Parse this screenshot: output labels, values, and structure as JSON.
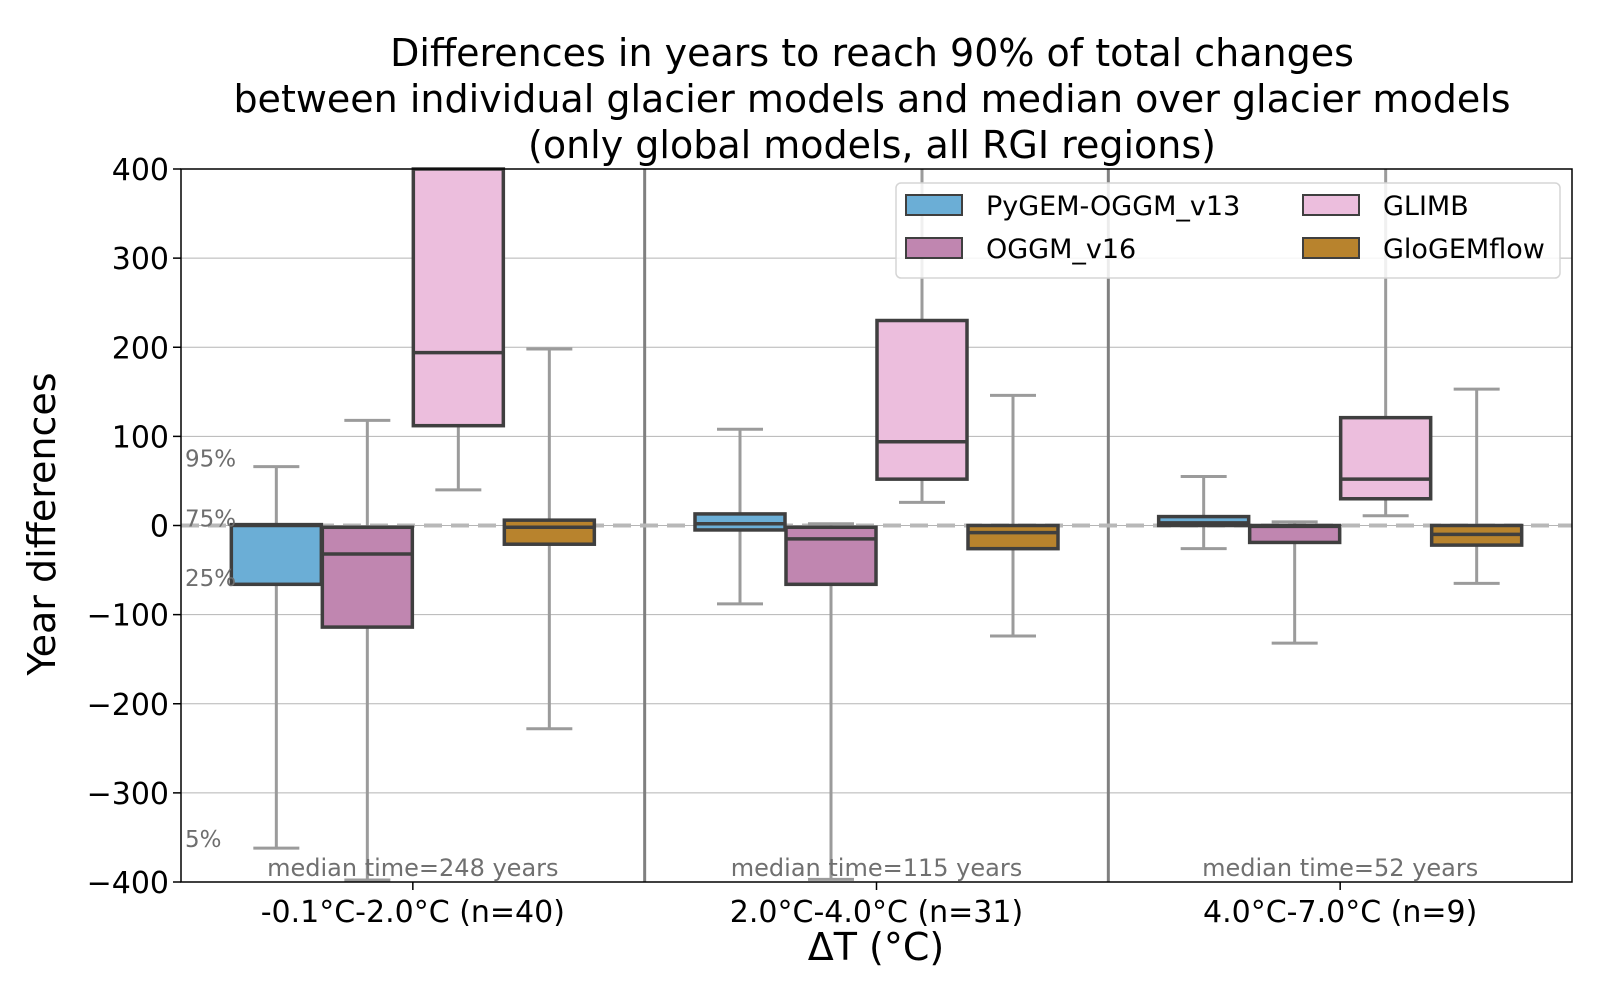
{
  "chart_data": {
    "type": "box",
    "title_lines": [
      "Differences in years to reach 90% of total changes",
      "between individual glacier models and median over glacier models",
      "(only global models, all RGI regions)"
    ],
    "xlabel": "ΔT (°C)",
    "ylabel": "Year differences",
    "ylim": [
      -400,
      400
    ],
    "yticks": [
      400,
      300,
      200,
      100,
      0,
      -100,
      -200,
      -300,
      -400
    ],
    "ytick_labels": [
      "400",
      "300",
      "200",
      "100",
      "0",
      "−100",
      "−200",
      "−300",
      "−400"
    ],
    "grid": "horizontal",
    "reference_line": 0,
    "percentile_labels": [
      {
        "label": "95%",
        "value": 75
      },
      {
        "label": "75%",
        "value": 8
      },
      {
        "label": "25%",
        "value": -59
      },
      {
        "label": "5%",
        "value": -352
      }
    ],
    "categories": [
      "-0.1°C-2.0°C (n=40)",
      "2.0°C-4.0°C (n=31)",
      "4.0°C-7.0°C (n=9)"
    ],
    "median_time_labels": [
      "median time=248 years",
      "median time=115 years",
      "median time=52 years"
    ],
    "legend": {
      "position": "top-right",
      "columns": 2
    },
    "series": [
      {
        "name": "PyGEM-OGGM_v13",
        "color": "#6baed6",
        "boxes": [
          {
            "whislo": -362,
            "q1": -66,
            "med": 0,
            "q3": 1,
            "whishi": 66
          },
          {
            "whislo": -88,
            "q1": -5,
            "med": 2,
            "q3": 13,
            "whishi": 108
          },
          {
            "whislo": -26,
            "q1": 0,
            "med": 3,
            "q3": 10,
            "whishi": 55
          }
        ]
      },
      {
        "name": "OGGM_v16",
        "color": "#c086b0",
        "boxes": [
          {
            "whislo": -400,
            "q1": -114,
            "med": -32,
            "q3": -2,
            "whishi": 118
          },
          {
            "whislo": -397,
            "q1": -66,
            "med": -15,
            "q3": -2,
            "whishi": 2
          },
          {
            "whislo": -132,
            "q1": -19,
            "med": -1,
            "q3": 0,
            "whishi": 4
          }
        ]
      },
      {
        "name": "GLIMB",
        "color": "#ecbedd",
        "boxes": [
          {
            "whislo": 40,
            "q1": 112,
            "med": 194,
            "q3": 400,
            "whishi": 400
          },
          {
            "whislo": 26,
            "q1": 52,
            "med": 94,
            "q3": 230,
            "whishi": 400
          },
          {
            "whislo": 11,
            "q1": 30,
            "med": 52,
            "q3": 121,
            "whishi": 400
          }
        ]
      },
      {
        "name": "GloGEMflow",
        "color": "#b8832d",
        "boxes": [
          {
            "whislo": -228,
            "q1": -21,
            "med": -2,
            "q3": 6,
            "whishi": 198
          },
          {
            "whislo": -124,
            "q1": -26,
            "med": -8,
            "q3": 0,
            "whishi": 146
          },
          {
            "whislo": -65,
            "q1": -22,
            "med": -10,
            "q3": 0,
            "whishi": 153
          }
        ]
      }
    ]
  }
}
